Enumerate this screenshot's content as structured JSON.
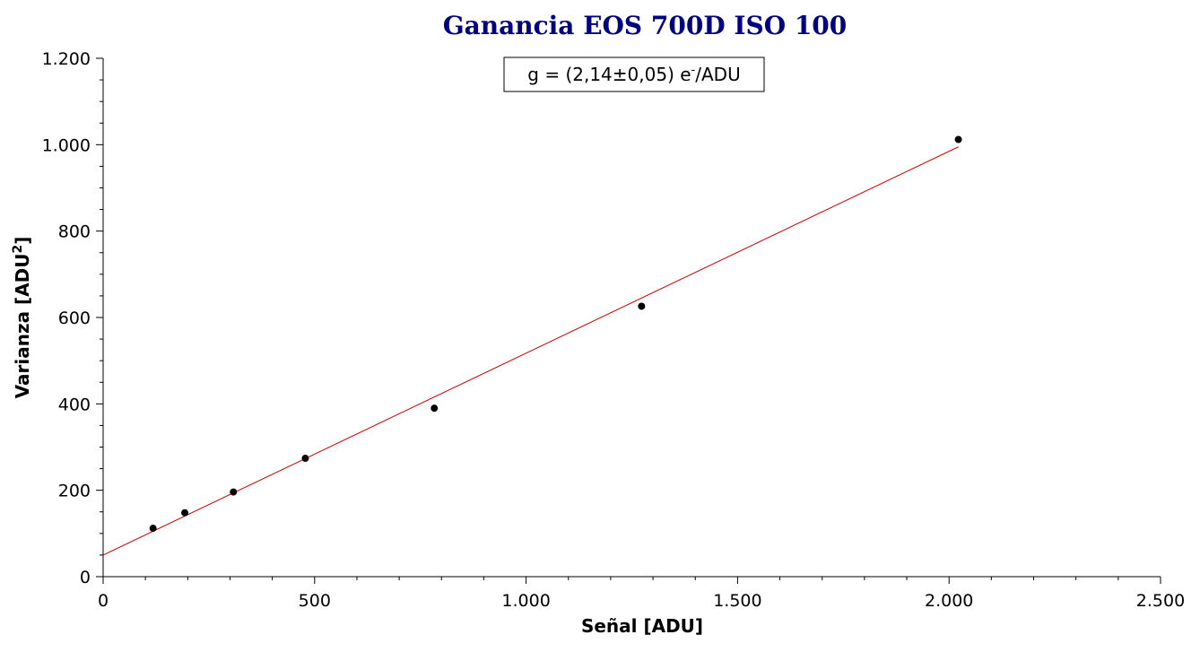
{
  "chart_data": {
    "type": "scatter",
    "title": "Ganancia EOS 700D ISO 100",
    "xlabel": "Señal [ADU]",
    "ylabel_base": "Varianza [ADU",
    "ylabel_sup": "2",
    "ylabel_end": "]",
    "xlim": [
      0,
      2500
    ],
    "ylim": [
      0,
      1200
    ],
    "x_ticks": [
      0,
      500,
      1000,
      1500,
      2000,
      2500
    ],
    "x_tick_labels": [
      "0",
      "500",
      "1.000",
      "1.500",
      "2.000",
      "2.500"
    ],
    "y_ticks": [
      0,
      200,
      400,
      600,
      800,
      1000,
      1200
    ],
    "y_tick_labels": [
      "0",
      "200",
      "400",
      "600",
      "800",
      "1.000",
      "1.200"
    ],
    "grid": false,
    "points": [
      {
        "x": 118,
        "y": 112
      },
      {
        "x": 193,
        "y": 148
      },
      {
        "x": 308,
        "y": 196
      },
      {
        "x": 478,
        "y": 274
      },
      {
        "x": 783,
        "y": 390
      },
      {
        "x": 1273,
        "y": 626
      },
      {
        "x": 2022,
        "y": 1012
      }
    ],
    "fit_line": {
      "x_start": 0,
      "y_start": 50,
      "x_end": 2022,
      "y_end": 995
    },
    "annotation": {
      "base": "g = (2,14±0,05) e",
      "sup": "-",
      "end": "/ADU"
    },
    "colors": {
      "title": "#000080",
      "points": "#000000",
      "fit_line": "#cc0000",
      "axes": "#000000"
    }
  }
}
